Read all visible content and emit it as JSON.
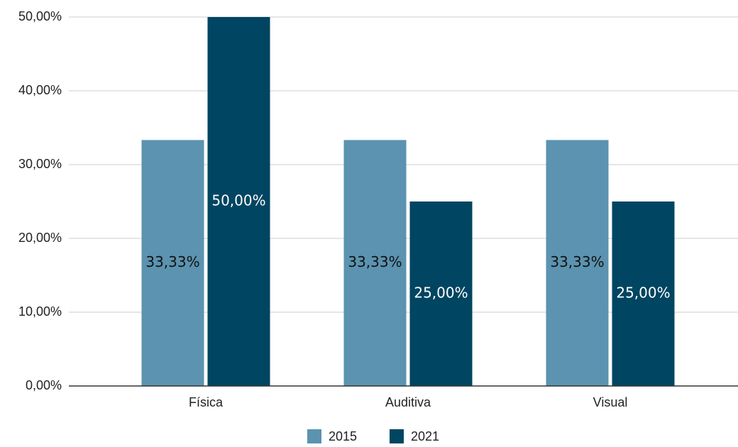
{
  "chart_data": {
    "type": "bar",
    "categories": [
      "Física",
      "Auditiva",
      "Visual"
    ],
    "series": [
      {
        "name": "2015",
        "color": "#5b93b0",
        "values": [
          33.33,
          33.33,
          33.33
        ],
        "value_labels": [
          "33,33%",
          "33,33%",
          "33,33%"
        ]
      },
      {
        "name": "2021",
        "color": "#004561",
        "values": [
          50,
          25,
          25
        ],
        "value_labels": [
          "50,00%",
          "25,00%",
          "25,00%"
        ]
      }
    ],
    "ylim": [
      0,
      50
    ],
    "yticks": [
      {
        "value": 0,
        "label": "0,00%"
      },
      {
        "value": 10,
        "label": "10,00%"
      },
      {
        "value": 20,
        "label": "20,00%"
      },
      {
        "value": 30,
        "label": "30,00%"
      },
      {
        "value": 40,
        "label": "40,00%"
      },
      {
        "value": 50,
        "label": "50,00%"
      }
    ],
    "grid": true,
    "legend": "bottom"
  }
}
